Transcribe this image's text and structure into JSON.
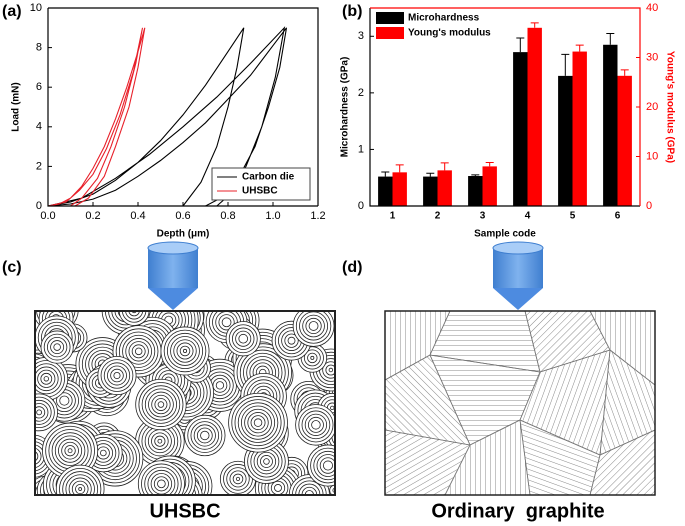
{
  "chart_data": [
    {
      "type": "line",
      "label": "(a)",
      "xlabel": "Depth (μm)",
      "ylabel": "Load (mN)",
      "xlim": [
        0,
        1.2
      ],
      "ylim": [
        0,
        10
      ],
      "xticks": [
        {
          "value": 0,
          "label": "0.0"
        },
        0.2,
        0.4,
        0.6,
        0.8,
        {
          "value": 1,
          "label": "1.0"
        },
        1.2
      ],
      "yticks": [
        0,
        2,
        4,
        6,
        8,
        10
      ],
      "legend": "lower right",
      "series": [
        {
          "name": "Carbon die",
          "color": "#000000",
          "x": [
            0,
            0.1,
            0.2,
            0.3,
            0.4,
            0.5,
            0.6,
            0.7,
            0.8,
            0.9,
            1.0,
            1.06,
            1.03,
            0.98,
            0.92,
            0.85,
            0.75,
            0.7,
            null,
            0,
            0.1,
            0.2,
            0.3,
            0.4,
            0.5,
            0.6,
            0.7,
            0.8,
            0.87,
            0.84,
            0.8,
            0.75,
            0.68,
            0.6,
            null,
            0,
            0.15,
            0.3,
            0.45,
            0.6,
            0.75,
            0.9,
            1.05,
            1.01,
            0.95,
            0.88,
            0.8,
            0.75
          ],
          "values": [
            0,
            0.1,
            0.35,
            0.8,
            1.5,
            2.3,
            3.2,
            4.2,
            5.4,
            6.6,
            8.1,
            9,
            7,
            5,
            3,
            1.5,
            0.3,
            0,
            null,
            0,
            0.2,
            0.6,
            1.3,
            2.2,
            3.3,
            4.6,
            6.1,
            7.8,
            9,
            7,
            5,
            3,
            1.2,
            0,
            null,
            0,
            0.4,
            1.4,
            2.6,
            4.0,
            5.5,
            7.2,
            9,
            6.5,
            4,
            2,
            0.5,
            0
          ]
        },
        {
          "name": "UHSBC",
          "color": "#e8202a",
          "x": [
            0,
            0.05,
            0.1,
            0.15,
            0.2,
            0.25,
            0.3,
            0.35,
            0.4,
            0.43,
            0.4,
            0.36,
            0.3,
            0.25,
            0.18,
            0.12,
            null,
            0,
            0.08,
            0.14,
            0.2,
            0.26,
            0.32,
            0.38,
            0.42,
            0.39,
            0.34,
            0.28,
            0.22,
            0.15,
            0.1
          ],
          "values": [
            0,
            0.1,
            0.4,
            1.0,
            1.9,
            3.0,
            4.4,
            6.0,
            7.8,
            9,
            7,
            5,
            3,
            1.5,
            0.4,
            0,
            null,
            0,
            0.2,
            0.8,
            1.6,
            2.9,
            4.6,
            6.8,
            9,
            7.2,
            5,
            3,
            1.4,
            0.4,
            0
          ]
        }
      ]
    },
    {
      "type": "bar",
      "label": "(b)",
      "xlabel": "Sample code",
      "ylabel": "Microhardness (GPa)",
      "y2label": "Young's modulus (GPa)",
      "categories": [
        "1",
        "2",
        "3",
        "4",
        "5",
        "6"
      ],
      "ylim": [
        0,
        3.5
      ],
      "yticks": [
        0,
        1,
        2,
        3
      ],
      "y2lim": [
        0,
        40
      ],
      "y2ticks": [
        0,
        10,
        20,
        30,
        40
      ],
      "legend": "upper left",
      "series": [
        {
          "name": "Microhardness",
          "color": "#000000",
          "values": [
            0.52,
            0.52,
            0.53,
            2.72,
            2.3,
            2.85
          ],
          "errors": [
            0.08,
            0.06,
            0.02,
            0.25,
            0.38,
            0.2
          ]
        },
        {
          "name": "Young's modulus",
          "color": "#ff0000",
          "axis": "y2",
          "values": [
            6.8,
            7.2,
            8.0,
            36.0,
            31.2,
            26.3
          ],
          "errors": [
            1.5,
            1.5,
            0.8,
            1.0,
            1.3,
            1.2
          ]
        }
      ]
    }
  ],
  "diagrams": [
    {
      "label": "(c)",
      "caption": "UHSBC"
    },
    {
      "label": "(d)",
      "caption": "Ordinary  graphite"
    }
  ]
}
